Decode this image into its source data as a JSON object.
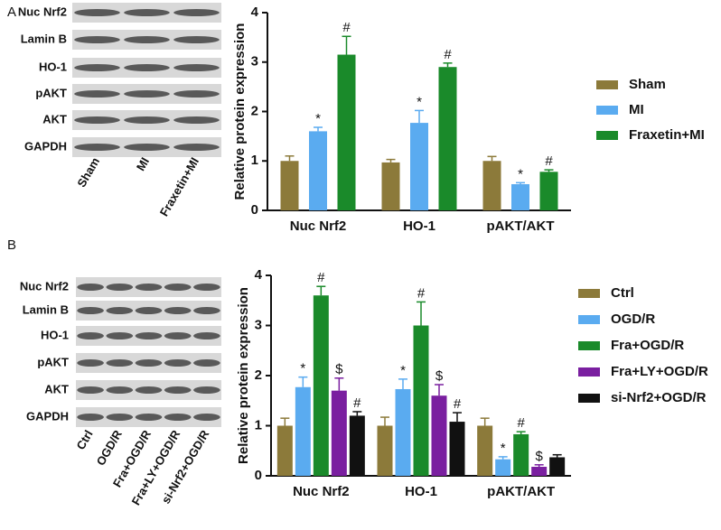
{
  "panels": [
    {
      "label": "A",
      "blot_rows": [
        "Nuc Nrf2",
        "Lamin B",
        "HO-1",
        "pAKT",
        "AKT",
        "GAPDH"
      ],
      "lanes": [
        "Sham",
        "MI",
        "Fraxetin+MI"
      ]
    },
    {
      "label": "B",
      "blot_rows": [
        "Nuc Nrf2",
        "Lamin B",
        "HO-1",
        "pAKT",
        "AKT",
        "GAPDH"
      ],
      "lanes": [
        "Ctrl",
        "OGD/R",
        "Fra+OGD/R",
        "Fra+LY+OGD/R",
        "si-Nrf2+OGD/R"
      ]
    }
  ],
  "chart_data": [
    {
      "type": "bar",
      "y_label": "Relative protein expression",
      "categories": [
        "Nuc Nrf2",
        "HO-1",
        "pAKT/AKT"
      ],
      "ylim": [
        0,
        4
      ],
      "yticks": [
        0,
        1,
        2,
        3,
        4
      ],
      "legend": "right",
      "series": [
        {
          "name": "Sham",
          "color": "#8c7a3a",
          "values": [
            1.0,
            0.97,
            1.0
          ],
          "errors": [
            0.1,
            0.06,
            0.09
          ],
          "markers": [
            null,
            null,
            null
          ]
        },
        {
          "name": "MI",
          "color": "#5aabf0",
          "values": [
            1.6,
            1.77,
            0.53
          ],
          "errors": [
            0.08,
            0.25,
            0.03
          ],
          "markers": [
            "*",
            "*",
            "*"
          ]
        },
        {
          "name": "Fraxetin+MI",
          "color": "#1a8a2a",
          "values": [
            3.15,
            2.9,
            0.78
          ],
          "errors": [
            0.37,
            0.08,
            0.04
          ],
          "markers": [
            "#",
            "#",
            "#"
          ]
        }
      ]
    },
    {
      "type": "bar",
      "y_label": "Relative protein expression",
      "categories": [
        "Nuc Nrf2",
        "HO-1",
        "pAKT/AKT"
      ],
      "ylim": [
        0,
        4
      ],
      "yticks": [
        0,
        1,
        2,
        3,
        4
      ],
      "legend": "right",
      "series": [
        {
          "name": "Ctrl",
          "color": "#8c7a3a",
          "values": [
            1.0,
            1.0,
            1.0
          ],
          "errors": [
            0.15,
            0.17,
            0.15
          ],
          "markers": [
            null,
            null,
            null
          ]
        },
        {
          "name": "OGD/R",
          "color": "#5aabf0",
          "values": [
            1.77,
            1.73,
            0.33
          ],
          "errors": [
            0.2,
            0.2,
            0.05
          ],
          "markers": [
            "*",
            "*",
            "*"
          ]
        },
        {
          "name": "Fra+OGD/R",
          "color": "#1a8a2a",
          "values": [
            3.6,
            3.0,
            0.83
          ],
          "errors": [
            0.18,
            0.47,
            0.05
          ],
          "markers": [
            "#",
            "#",
            "#"
          ]
        },
        {
          "name": "Fra+LY+OGD/R",
          "color": "#7a1fa0",
          "values": [
            1.7,
            1.6,
            0.18
          ],
          "errors": [
            0.25,
            0.22,
            0.04
          ],
          "markers": [
            "$",
            "$",
            "$"
          ]
        },
        {
          "name": "si-Nrf2+OGD/R",
          "color": "#111111",
          "values": [
            1.2,
            1.08,
            0.37
          ],
          "errors": [
            0.08,
            0.18,
            0.05
          ],
          "markers": [
            "#",
            "#",
            null
          ]
        }
      ]
    }
  ]
}
